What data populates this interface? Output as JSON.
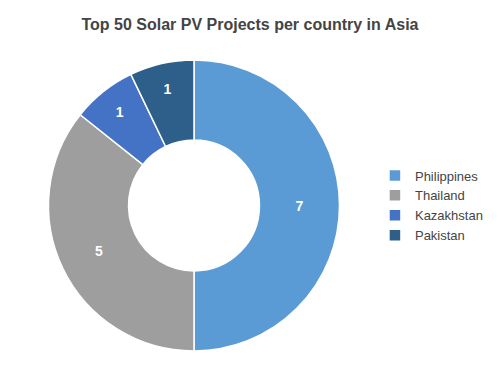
{
  "chart_data": {
    "type": "donut",
    "title": "Top 50 Solar PV Projects per country in Asia",
    "categories": [
      "Philippines",
      "Thailand",
      "Kazakhstan",
      "Pakistan"
    ],
    "values": [
      7,
      5,
      1,
      1
    ],
    "colors": [
      "#5b9bd5",
      "#9e9e9e",
      "#4472c4",
      "#2e5f8a"
    ],
    "data_labels": true,
    "legend": "right"
  }
}
